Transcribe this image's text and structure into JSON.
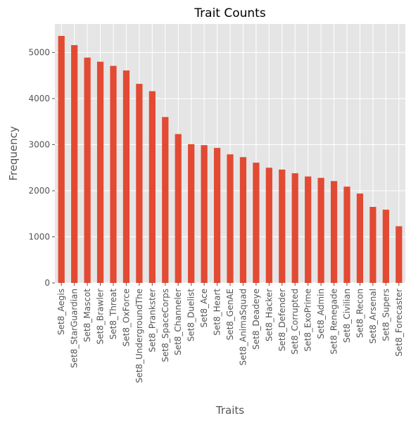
{
  "chart_data": {
    "type": "bar",
    "title": "Trait Counts",
    "xlabel": "Traits",
    "ylabel": "Frequency",
    "ylim": [
      0,
      5620
    ],
    "yticks": [
      0,
      1000,
      2000,
      3000,
      4000,
      5000
    ],
    "grid": true,
    "legend": "none",
    "bar_color": "#E24A33",
    "background_color": "#E5E5E5",
    "categories": [
      "Set8_Aegis",
      "Set8_StarGuardian",
      "Set8_Mascot",
      "Set8_Brawler",
      "Set8_Threat",
      "Set8_OxForce",
      "Set8_UndergroundThe",
      "Set8_Prankster",
      "Set8_SpaceCorps",
      "Set8_Channeler",
      "Set8_Duelist",
      "Set8_Ace",
      "Set8_Heart",
      "Set8_GenAE",
      "Set8_AnimaSquad",
      "Set8_Deadeye",
      "Set8_Hacker",
      "Set8_Defender",
      "Set8_Corrupted",
      "Set8_ExoPrime",
      "Set8_Admin",
      "Set8_Renegade",
      "Set8_Civilian",
      "Set8_Recon",
      "Set8_Arsenal",
      "Set8_Supers",
      "Set8_Forecaster"
    ],
    "values": [
      5360,
      5160,
      4890,
      4800,
      4710,
      4610,
      4320,
      4160,
      3600,
      3230,
      3010,
      2990,
      2930,
      2790,
      2730,
      2610,
      2500,
      2460,
      2380,
      2310,
      2280,
      2210,
      2090,
      1940,
      1650,
      1590,
      1230
    ]
  }
}
